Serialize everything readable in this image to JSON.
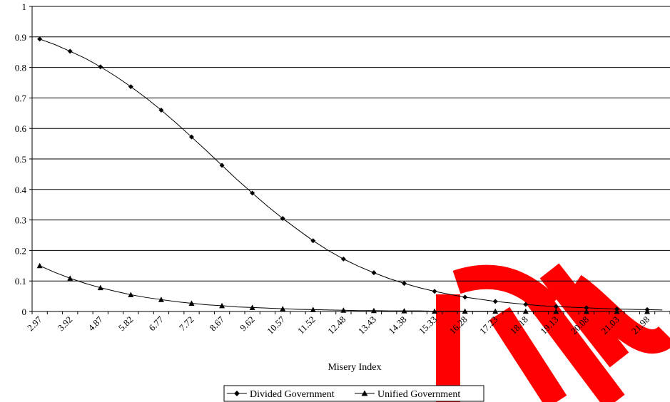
{
  "chart_data": {
    "type": "line",
    "title": "",
    "xlabel": "Misery Index",
    "ylabel": "",
    "x": [
      "2.97",
      "3.45",
      "3.92",
      "4.40",
      "4.87",
      "5.35",
      "5.82",
      "6.30",
      "6.77",
      "7.25",
      "7.72",
      "8.20",
      "8.67",
      "9.15",
      "9.62",
      "10.10",
      "10.57",
      "11.05",
      "11.52",
      "12.00",
      "12.48",
      "12.95",
      "13.43",
      "13.90",
      "14.38",
      "14.85",
      "15.33",
      "15.80",
      "16.28",
      "16.75",
      "17.23",
      "17.70",
      "18.18",
      "18.65",
      "19.13",
      "19.60",
      "20.08",
      "20.55",
      "21.03",
      "21.50",
      "21.98",
      "22.45"
    ],
    "x_tick_labels": [
      "2.97",
      "3.92",
      "4.87",
      "5.82",
      "6.77",
      "7.72",
      "8.67",
      "9.62",
      "10.57",
      "11.52",
      "12.48",
      "13.43",
      "14.38",
      "15.33",
      "16.28",
      "17.23",
      "18.18",
      "19.13",
      "20.08",
      "21.03",
      "21.98"
    ],
    "ylim": [
      0,
      1
    ],
    "y_ticks": [
      "0",
      "0.1",
      "0.2",
      "0.3",
      "0.4",
      "0.5",
      "0.6",
      "0.7",
      "0.8",
      "0.9",
      "1"
    ],
    "grid": true,
    "legend": "bottom",
    "series": [
      {
        "name": "Divided Government",
        "marker": "diamond",
        "values": [
          0.893,
          0.875,
          0.853,
          0.83,
          0.802,
          0.771,
          0.737,
          0.7,
          0.66,
          0.617,
          0.572,
          0.526,
          0.479,
          0.432,
          0.388,
          0.345,
          0.305,
          0.268,
          0.232,
          0.2,
          0.172,
          0.148,
          0.127,
          0.108,
          0.092,
          0.078,
          0.066,
          0.056,
          0.047,
          0.04,
          0.033,
          0.028,
          0.023,
          0.019,
          0.016,
          0.014,
          0.012,
          0.01,
          0.008,
          0.007,
          0.006,
          0.005
        ]
      },
      {
        "name": "Unified Government",
        "marker": "triangle",
        "values": [
          0.15,
          0.128,
          0.109,
          0.092,
          0.078,
          0.066,
          0.055,
          0.046,
          0.039,
          0.032,
          0.027,
          0.022,
          0.019,
          0.015,
          0.013,
          0.011,
          0.009,
          0.007,
          0.006,
          0.005,
          0.004,
          0.003,
          0.003,
          0.002,
          0.002,
          0.002,
          0.001,
          0.001,
          0.001,
          0.001,
          0.001,
          0.001,
          0.0005,
          0.0005,
          0.0004,
          0.0003,
          0.0003,
          0.0002,
          0.0002,
          0.0002,
          0.0001,
          0.0001
        ]
      }
    ]
  },
  "colors": {
    "line": "#000000",
    "grid": "#000000",
    "watermark": "#ff0000"
  }
}
